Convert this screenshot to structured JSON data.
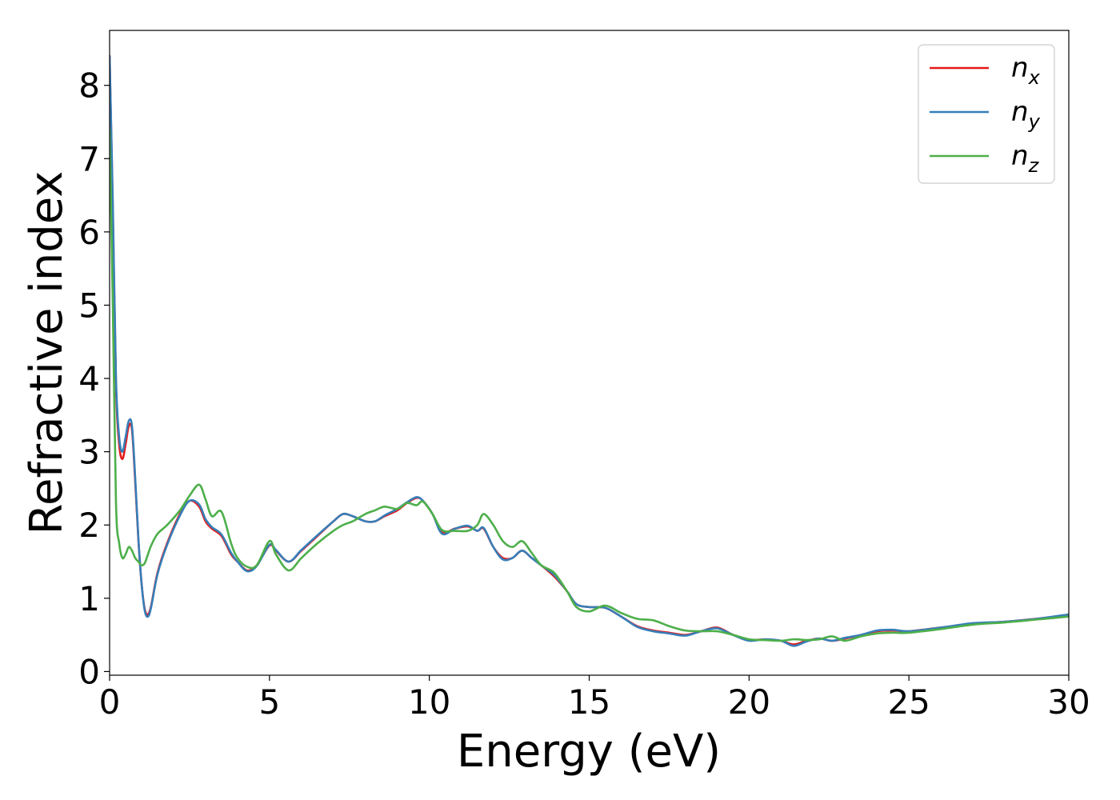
{
  "chart_data": {
    "type": "line",
    "xlabel": "Energy (eV)",
    "ylabel": "Refractive index",
    "xlim": [
      0,
      30
    ],
    "ylim": [
      -0.05,
      8.75
    ],
    "xticks": [
      "0",
      "5",
      "10",
      "15",
      "20",
      "25",
      "30"
    ],
    "yticks": [
      "0",
      "1",
      "2",
      "3",
      "4",
      "5",
      "6",
      "7",
      "8"
    ],
    "grid": false,
    "legend_position": "top-right",
    "series": [
      {
        "name": "n_x",
        "legend_base": "n",
        "legend_sub": "x",
        "color": "#e41a1c",
        "x": [
          0,
          0.1,
          0.2,
          0.3,
          0.4,
          0.5,
          0.6,
          0.7,
          0.8,
          0.9,
          1.0,
          1.1,
          1.2,
          1.3,
          1.5,
          1.8,
          2.2,
          2.5,
          2.8,
          3.0,
          3.2,
          3.5,
          3.8,
          4.0,
          4.3,
          4.6,
          5.0,
          5.2,
          5.6,
          6.0,
          6.5,
          7.0,
          7.3,
          7.6,
          8.0,
          8.3,
          8.6,
          9.0,
          9.3,
          9.6,
          9.8,
          10.1,
          10.4,
          10.8,
          11.2,
          11.5,
          11.7,
          12.0,
          12.3,
          12.6,
          12.9,
          13.2,
          13.5,
          13.9,
          14.3,
          14.6,
          15.0,
          15.5,
          16.0,
          16.5,
          17.0,
          17.5,
          18.0,
          18.5,
          19.0,
          19.5,
          20.0,
          20.5,
          21.0,
          21.4,
          21.8,
          22.2,
          22.6,
          23.0,
          23.5,
          24.0,
          24.5,
          25.0,
          26.0,
          27.0,
          28.0,
          29.0,
          30.0
        ],
        "y": [
          8.4,
          6.3,
          3.9,
          3.1,
          2.9,
          3.1,
          3.35,
          3.3,
          2.6,
          1.8,
          1.2,
          0.85,
          0.78,
          0.9,
          1.35,
          1.75,
          2.15,
          2.33,
          2.25,
          2.05,
          1.95,
          1.85,
          1.6,
          1.5,
          1.38,
          1.45,
          1.72,
          1.65,
          1.5,
          1.65,
          1.85,
          2.05,
          2.15,
          2.12,
          2.05,
          2.05,
          2.12,
          2.2,
          2.3,
          2.37,
          2.33,
          2.15,
          1.9,
          1.95,
          1.98,
          1.92,
          1.95,
          1.7,
          1.55,
          1.55,
          1.65,
          1.55,
          1.45,
          1.3,
          1.1,
          0.92,
          0.88,
          0.87,
          0.75,
          0.62,
          0.56,
          0.53,
          0.5,
          0.55,
          0.6,
          0.5,
          0.43,
          0.44,
          0.42,
          0.37,
          0.42,
          0.45,
          0.42,
          0.45,
          0.5,
          0.55,
          0.56,
          0.55,
          0.6,
          0.65,
          0.68,
          0.72,
          0.77
        ]
      },
      {
        "name": "n_y",
        "legend_base": "n",
        "legend_sub": "y",
        "color": "#377eb8",
        "x": [
          0,
          0.1,
          0.2,
          0.3,
          0.4,
          0.5,
          0.6,
          0.7,
          0.8,
          0.9,
          1.0,
          1.1,
          1.2,
          1.3,
          1.5,
          1.8,
          2.2,
          2.5,
          2.8,
          3.0,
          3.2,
          3.5,
          3.8,
          4.0,
          4.3,
          4.6,
          5.0,
          5.2,
          5.6,
          6.0,
          6.5,
          7.0,
          7.3,
          7.6,
          8.0,
          8.3,
          8.6,
          9.0,
          9.3,
          9.6,
          9.8,
          10.1,
          10.4,
          10.8,
          11.2,
          11.5,
          11.7,
          12.0,
          12.3,
          12.6,
          12.9,
          13.2,
          13.5,
          13.9,
          14.3,
          14.6,
          15.0,
          15.5,
          16.0,
          16.5,
          17.0,
          17.5,
          18.0,
          18.5,
          19.0,
          19.5,
          20.0,
          20.5,
          21.0,
          21.4,
          21.8,
          22.2,
          22.6,
          23.0,
          23.5,
          24.0,
          24.5,
          25.0,
          26.0,
          27.0,
          28.0,
          29.0,
          30.0
        ],
        "y": [
          8.4,
          6.4,
          4.0,
          3.2,
          3.0,
          3.2,
          3.42,
          3.35,
          2.65,
          1.82,
          1.2,
          0.83,
          0.75,
          0.88,
          1.33,
          1.73,
          2.13,
          2.33,
          2.28,
          2.08,
          1.97,
          1.87,
          1.62,
          1.5,
          1.37,
          1.44,
          1.73,
          1.66,
          1.5,
          1.66,
          1.86,
          2.05,
          2.15,
          2.12,
          2.05,
          2.05,
          2.13,
          2.22,
          2.31,
          2.38,
          2.33,
          2.15,
          1.88,
          1.95,
          1.99,
          1.92,
          1.96,
          1.7,
          1.53,
          1.55,
          1.65,
          1.55,
          1.45,
          1.32,
          1.1,
          0.92,
          0.88,
          0.87,
          0.75,
          0.61,
          0.55,
          0.52,
          0.49,
          0.55,
          0.59,
          0.5,
          0.42,
          0.44,
          0.42,
          0.35,
          0.41,
          0.45,
          0.42,
          0.46,
          0.5,
          0.56,
          0.57,
          0.55,
          0.6,
          0.66,
          0.68,
          0.72,
          0.78
        ]
      },
      {
        "name": "n_z",
        "legend_base": "n",
        "legend_sub": "z",
        "color": "#4daf4a",
        "x": [
          0,
          0.1,
          0.2,
          0.3,
          0.4,
          0.5,
          0.6,
          0.7,
          0.8,
          0.9,
          1.0,
          1.1,
          1.2,
          1.3,
          1.5,
          1.8,
          2.2,
          2.5,
          2.8,
          3.0,
          3.2,
          3.5,
          3.8,
          4.0,
          4.3,
          4.6,
          5.0,
          5.2,
          5.6,
          6.0,
          6.5,
          7.0,
          7.3,
          7.6,
          8.0,
          8.3,
          8.6,
          9.0,
          9.3,
          9.6,
          9.8,
          10.1,
          10.4,
          10.8,
          11.2,
          11.5,
          11.7,
          12.0,
          12.3,
          12.6,
          12.9,
          13.2,
          13.5,
          13.9,
          14.3,
          14.6,
          15.0,
          15.5,
          16.0,
          16.5,
          17.0,
          17.5,
          18.0,
          18.5,
          19.0,
          19.5,
          20.0,
          20.5,
          21.0,
          21.4,
          21.8,
          22.2,
          22.6,
          23.0,
          23.5,
          24.0,
          24.5,
          25.0,
          26.0,
          27.0,
          28.0,
          29.0,
          30.0
        ],
        "y": [
          7.4,
          5.0,
          2.3,
          1.75,
          1.55,
          1.6,
          1.7,
          1.65,
          1.55,
          1.5,
          1.45,
          1.48,
          1.6,
          1.72,
          1.88,
          2.0,
          2.2,
          2.4,
          2.55,
          2.35,
          2.12,
          2.18,
          1.75,
          1.55,
          1.43,
          1.45,
          1.78,
          1.6,
          1.38,
          1.55,
          1.75,
          1.92,
          2.0,
          2.05,
          2.15,
          2.2,
          2.25,
          2.22,
          2.3,
          2.27,
          2.32,
          2.15,
          1.93,
          1.92,
          1.92,
          2.0,
          2.15,
          2.0,
          1.78,
          1.7,
          1.78,
          1.62,
          1.45,
          1.35,
          1.1,
          0.88,
          0.82,
          0.9,
          0.8,
          0.72,
          0.7,
          0.62,
          0.56,
          0.55,
          0.55,
          0.5,
          0.44,
          0.43,
          0.42,
          0.44,
          0.43,
          0.44,
          0.48,
          0.42,
          0.48,
          0.52,
          0.53,
          0.53,
          0.58,
          0.64,
          0.67,
          0.71,
          0.75
        ]
      }
    ]
  }
}
